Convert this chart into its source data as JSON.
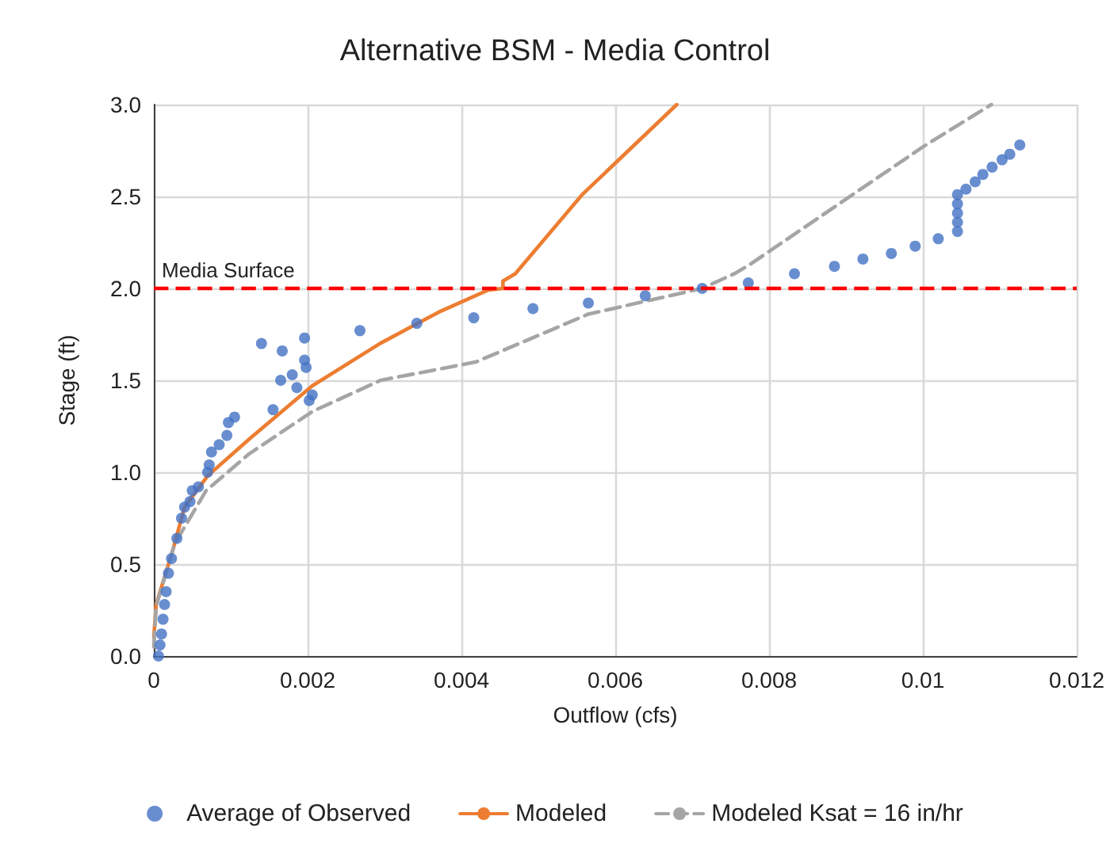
{
  "chart_data": {
    "type": "scatter",
    "title": "Alternative BSM - Media Control",
    "xlabel": "Outflow (cfs)",
    "ylabel": "Stage (ft)",
    "xlim": [
      0,
      0.012
    ],
    "xticks": [
      0,
      0.002,
      0.004,
      0.006,
      0.008,
      0.01,
      0.012
    ],
    "ylim": [
      0,
      3
    ],
    "yticks": [
      {
        "value": 0,
        "label": "0.0"
      },
      {
        "value": 0.5,
        "label": "0.5"
      },
      {
        "value": 1,
        "label": "1.0"
      },
      {
        "value": 1.5,
        "label": "1.5"
      },
      {
        "value": 2,
        "label": "2.0"
      },
      {
        "value": 2.5,
        "label": "2.5"
      },
      {
        "value": 3,
        "label": "3.0"
      }
    ],
    "grid": true,
    "legend": "bottom",
    "ref_lines": [
      {
        "axis": "y",
        "value": 2,
        "label": "Media Surface",
        "color": "#ff0000",
        "line_style": "dashed"
      }
    ],
    "series": [
      {
        "name": "Average of Observed",
        "marker": "circle",
        "color": "#4472c4",
        "x": [
          6e-05,
          8e-05,
          0.0001,
          0.00012,
          0.00014,
          0.00016,
          0.00019,
          0.00023,
          0.0003,
          0.00036,
          0.0004,
          0.00047,
          0.0005,
          0.00058,
          0.0007,
          0.00072,
          0.00075,
          0.00085,
          0.00095,
          0.00097,
          0.00105,
          0.0014,
          0.00155,
          0.00165,
          0.00167,
          0.0018,
          0.00186,
          0.00196,
          0.00196,
          0.00198,
          0.00202,
          0.00206,
          0.00268,
          0.00342,
          0.00416,
          0.00493,
          0.00565,
          0.00639,
          0.00713,
          0.00773,
          0.00833,
          0.00885,
          0.00922,
          0.00959,
          0.0099,
          0.0102,
          0.01045,
          0.01045,
          0.01045,
          0.01045,
          0.01045,
          0.01056,
          0.01068,
          0.01078,
          0.0109,
          0.01103,
          0.01113,
          0.01126
        ],
        "values": [
          0,
          0.06,
          0.12,
          0.2,
          0.28,
          0.35,
          0.45,
          0.53,
          0.64,
          0.75,
          0.81,
          0.84,
          0.9,
          0.92,
          1.0,
          1.04,
          1.11,
          1.15,
          1.2,
          1.27,
          1.3,
          1.7,
          1.34,
          1.5,
          1.66,
          1.53,
          1.46,
          1.73,
          1.61,
          1.57,
          1.39,
          1.42,
          1.77,
          1.81,
          1.84,
          1.89,
          1.92,
          1.96,
          2.0,
          2.03,
          2.08,
          2.12,
          2.16,
          2.19,
          2.23,
          2.27,
          2.31,
          2.36,
          2.41,
          2.46,
          2.51,
          2.54,
          2.58,
          2.62,
          2.66,
          2.7,
          2.73,
          2.78
        ]
      },
      {
        "name": "Modeled",
        "type": "line",
        "marker": "none",
        "line_style": "solid",
        "color": "#ed7d31",
        "x": [
          0,
          3e-05,
          0.00025,
          0.0004,
          0.0007,
          0.00124,
          0.00206,
          0.00294,
          0.0037,
          0.00434,
          0.00454,
          0.00454,
          0.0047,
          0.00557,
          0.0068
        ],
        "values": [
          0.1,
          0.28,
          0.58,
          0.81,
          0.98,
          1.18,
          1.47,
          1.7,
          1.87,
          1.99,
          2.0,
          2.04,
          2.08,
          2.51,
          3.0
        ]
      },
      {
        "name": "Modeled Ksat = 16 in/hr",
        "type": "line",
        "marker": "none",
        "line_style": "dashed",
        "color": "#a5a5a5",
        "x": [
          0,
          3e-05,
          0.00027,
          0.00068,
          0.00124,
          0.00206,
          0.00295,
          0.00419,
          0.00565,
          0.00713,
          0.00755,
          0.00775,
          0.01,
          0.01089
        ],
        "values": [
          0.05,
          0.27,
          0.61,
          0.9,
          1.1,
          1.33,
          1.5,
          1.6,
          1.86,
          2.0,
          2.08,
          2.13,
          2.77,
          3.0
        ]
      }
    ]
  }
}
